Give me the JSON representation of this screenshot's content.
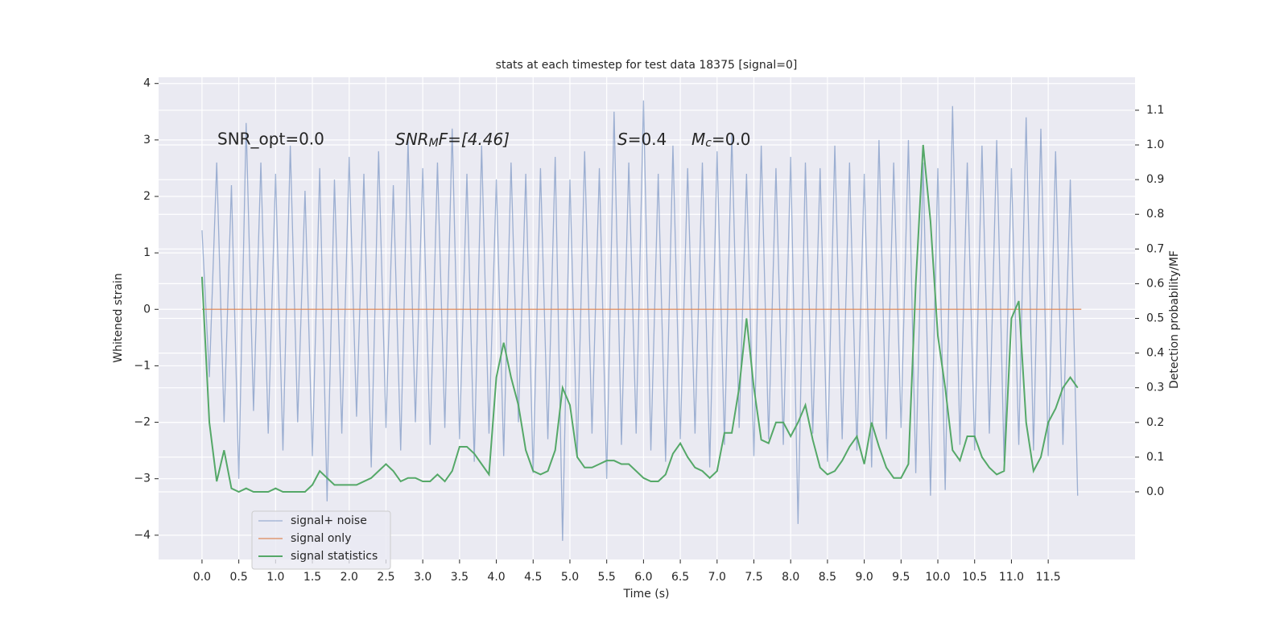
{
  "chart_data": {
    "type": "line",
    "title": "stats at each timestep for test data 18375 [signal=0]",
    "xlabel": "Time (s)",
    "ylabel": "Whitened strain",
    "y2label": "Detection probability/MF",
    "annotations": [
      {
        "text": "SNR_opt=0.0"
      },
      {
        "main": "SNR",
        "sub": "M",
        "rest": "F=[4.46]"
      },
      {
        "main": "S",
        "rest": "=0.4"
      },
      {
        "main": "M",
        "sub": "c",
        "rest": "=0.0"
      }
    ],
    "x": [
      0.0,
      0.1,
      0.2,
      0.3,
      0.4,
      0.5,
      0.6,
      0.7,
      0.8,
      0.9,
      1.0,
      1.1,
      1.2,
      1.3,
      1.4,
      1.5,
      1.6,
      1.7,
      1.8,
      1.9,
      2.0,
      2.1,
      2.2,
      2.3,
      2.4,
      2.5,
      2.6,
      2.7,
      2.8,
      2.9,
      3.0,
      3.1,
      3.2,
      3.3,
      3.4,
      3.5,
      3.6,
      3.7,
      3.8,
      3.9,
      4.0,
      4.1,
      4.2,
      4.3,
      4.4,
      4.5,
      4.6,
      4.7,
      4.8,
      4.9,
      5.0,
      5.1,
      5.2,
      5.3,
      5.4,
      5.5,
      5.6,
      5.7,
      5.8,
      5.9,
      6.0,
      6.1,
      6.2,
      6.3,
      6.4,
      6.5,
      6.6,
      6.7,
      6.8,
      6.9,
      7.0,
      7.1,
      7.2,
      7.3,
      7.4,
      7.5,
      7.6,
      7.7,
      7.8,
      7.9,
      8.0,
      8.1,
      8.2,
      8.3,
      8.4,
      8.5,
      8.6,
      8.7,
      8.8,
      8.9,
      9.0,
      9.1,
      9.2,
      9.3,
      9.4,
      9.5,
      9.6,
      9.7,
      9.8,
      9.9,
      10.0,
      10.1,
      10.2,
      10.3,
      10.4,
      10.5,
      10.6,
      10.7,
      10.8,
      10.9,
      11.0,
      11.1,
      11.2,
      11.3,
      11.4,
      11.5,
      11.6,
      11.7,
      11.8,
      11.9
    ],
    "series": [
      {
        "name": "signal+ noise",
        "color": "#4c72b0",
        "values": [
          1.4,
          -1.2,
          2.6,
          -2.0,
          2.2,
          -3.0,
          3.3,
          -1.8,
          2.6,
          -2.2,
          2.4,
          -2.5,
          2.9,
          -2.0,
          2.1,
          -2.6,
          2.5,
          -3.4,
          2.3,
          -2.2,
          2.7,
          -1.9,
          2.4,
          -2.8,
          2.8,
          -2.1,
          2.2,
          -2.5,
          3.0,
          -2.0,
          2.5,
          -2.4,
          2.6,
          -2.1,
          3.2,
          -2.3,
          2.4,
          -2.7,
          2.9,
          -2.2,
          2.3,
          -2.6,
          2.6,
          -2.0,
          2.4,
          -2.9,
          2.5,
          -2.3,
          2.7,
          -4.1,
          2.3,
          -2.6,
          2.8,
          -2.2,
          2.5,
          -3.0,
          3.5,
          -2.4,
          2.6,
          -2.2,
          3.7,
          -2.5,
          2.4,
          -2.7,
          2.9,
          -2.3,
          2.5,
          -2.2,
          2.6,
          -2.8,
          2.8,
          -2.4,
          3.1,
          -2.1,
          2.4,
          -2.6,
          2.9,
          -2.3,
          2.5,
          -2.4,
          2.7,
          -3.8,
          2.6,
          -2.2,
          2.5,
          -2.7,
          2.9,
          -2.3,
          2.6,
          -2.5,
          2.4,
          -2.8,
          3.0,
          -2.3,
          2.6,
          -2.1,
          3.0,
          -2.9,
          2.6,
          -3.3,
          2.5,
          -3.2,
          3.6,
          -2.4,
          2.6,
          -2.5,
          2.9,
          -2.2,
          3.0,
          -2.7,
          2.5,
          -2.4,
          3.4,
          -2.5,
          3.2,
          -2.6,
          2.8,
          -2.4,
          2.3,
          -3.3
        ]
      },
      {
        "name": "signal only",
        "color": "#dd8452",
        "x": [
          0.0,
          11.95
        ],
        "values": [
          0,
          0
        ]
      },
      {
        "name": "signal statistics",
        "color": "#55a868",
        "axis": "y2",
        "values": [
          0.62,
          0.2,
          0.03,
          0.12,
          0.01,
          0.0,
          0.01,
          0.0,
          0.0,
          0.0,
          0.01,
          0.0,
          0.0,
          0.0,
          0.0,
          0.02,
          0.06,
          0.04,
          0.02,
          0.02,
          0.02,
          0.02,
          0.03,
          0.04,
          0.06,
          0.08,
          0.06,
          0.03,
          0.04,
          0.04,
          0.03,
          0.03,
          0.05,
          0.03,
          0.06,
          0.13,
          0.13,
          0.11,
          0.08,
          0.05,
          0.33,
          0.43,
          0.33,
          0.25,
          0.12,
          0.06,
          0.05,
          0.06,
          0.12,
          0.3,
          0.25,
          0.1,
          0.07,
          0.07,
          0.08,
          0.09,
          0.09,
          0.08,
          0.08,
          0.06,
          0.04,
          0.03,
          0.03,
          0.05,
          0.11,
          0.14,
          0.1,
          0.07,
          0.06,
          0.04,
          0.06,
          0.17,
          0.17,
          0.3,
          0.5,
          0.3,
          0.15,
          0.14,
          0.2,
          0.2,
          0.16,
          0.2,
          0.25,
          0.15,
          0.07,
          0.05,
          0.06,
          0.09,
          0.13,
          0.16,
          0.08,
          0.2,
          0.13,
          0.07,
          0.04,
          0.04,
          0.08,
          0.6,
          1.0,
          0.78,
          0.45,
          0.3,
          0.12,
          0.09,
          0.16,
          0.16,
          0.1,
          0.07,
          0.05,
          0.06,
          0.5,
          0.55,
          0.2,
          0.06,
          0.1,
          0.2,
          0.24,
          0.3,
          0.33,
          0.3
        ]
      }
    ],
    "xlim": [
      -0.59,
      12.68
    ],
    "xticks": [
      {
        "value": 0,
        "label": "0.0"
      },
      {
        "value": 0.5,
        "label": "0.5"
      },
      {
        "value": 1,
        "label": "1.0"
      },
      {
        "value": 1.5,
        "label": "1.5"
      },
      {
        "value": 2,
        "label": "2.0"
      },
      {
        "value": 2.5,
        "label": "2.5"
      },
      {
        "value": 3,
        "label": "3.0"
      },
      {
        "value": 3.5,
        "label": "3.5"
      },
      {
        "value": 4,
        "label": "4.0"
      },
      {
        "value": 4.5,
        "label": "4.5"
      },
      {
        "value": 5,
        "label": "5.0"
      },
      {
        "value": 5.5,
        "label": "5.5"
      },
      {
        "value": 6,
        "label": "6.0"
      },
      {
        "value": 6.5,
        "label": "6.5"
      },
      {
        "value": 7,
        "label": "7.0"
      },
      {
        "value": 7.5,
        "label": "7.5"
      },
      {
        "value": 8,
        "label": "8.0"
      },
      {
        "value": 8.5,
        "label": "8.5"
      },
      {
        "value": 9,
        "label": "9.0"
      },
      {
        "value": 9.5,
        "label": "9.5"
      },
      {
        "value": 10,
        "label": "10.0"
      },
      {
        "value": 10.5,
        "label": "10.5"
      },
      {
        "value": 11,
        "label": "11.0"
      },
      {
        "value": 11.5,
        "label": "11.5"
      }
    ],
    "ylim": [
      -4.43,
      4.11
    ],
    "yticks": [
      {
        "value": -4,
        "label": "−4"
      },
      {
        "value": -3,
        "label": "−3"
      },
      {
        "value": -2,
        "label": "−2"
      },
      {
        "value": -1,
        "label": "−1"
      },
      0,
      1,
      2,
      3,
      4
    ],
    "y2lim": [
      -0.195,
      1.195
    ],
    "y2ticks": [
      {
        "value": 0,
        "label": "0.0"
      },
      {
        "value": 0.1,
        "label": "0.1"
      },
      {
        "value": 0.2,
        "label": "0.2"
      },
      {
        "value": 0.3,
        "label": "0.3"
      },
      {
        "value": 0.4,
        "label": "0.4"
      },
      {
        "value": 0.5,
        "label": "0.5"
      },
      {
        "value": 0.6,
        "label": "0.6"
      },
      {
        "value": 0.7,
        "label": "0.7"
      },
      {
        "value": 0.8,
        "label": "0.8"
      },
      {
        "value": 0.9,
        "label": "0.9"
      },
      {
        "value": 1,
        "label": "1.0"
      },
      {
        "value": 1.1,
        "label": "1.1"
      }
    ],
    "grid": true,
    "legend": "lower left"
  }
}
